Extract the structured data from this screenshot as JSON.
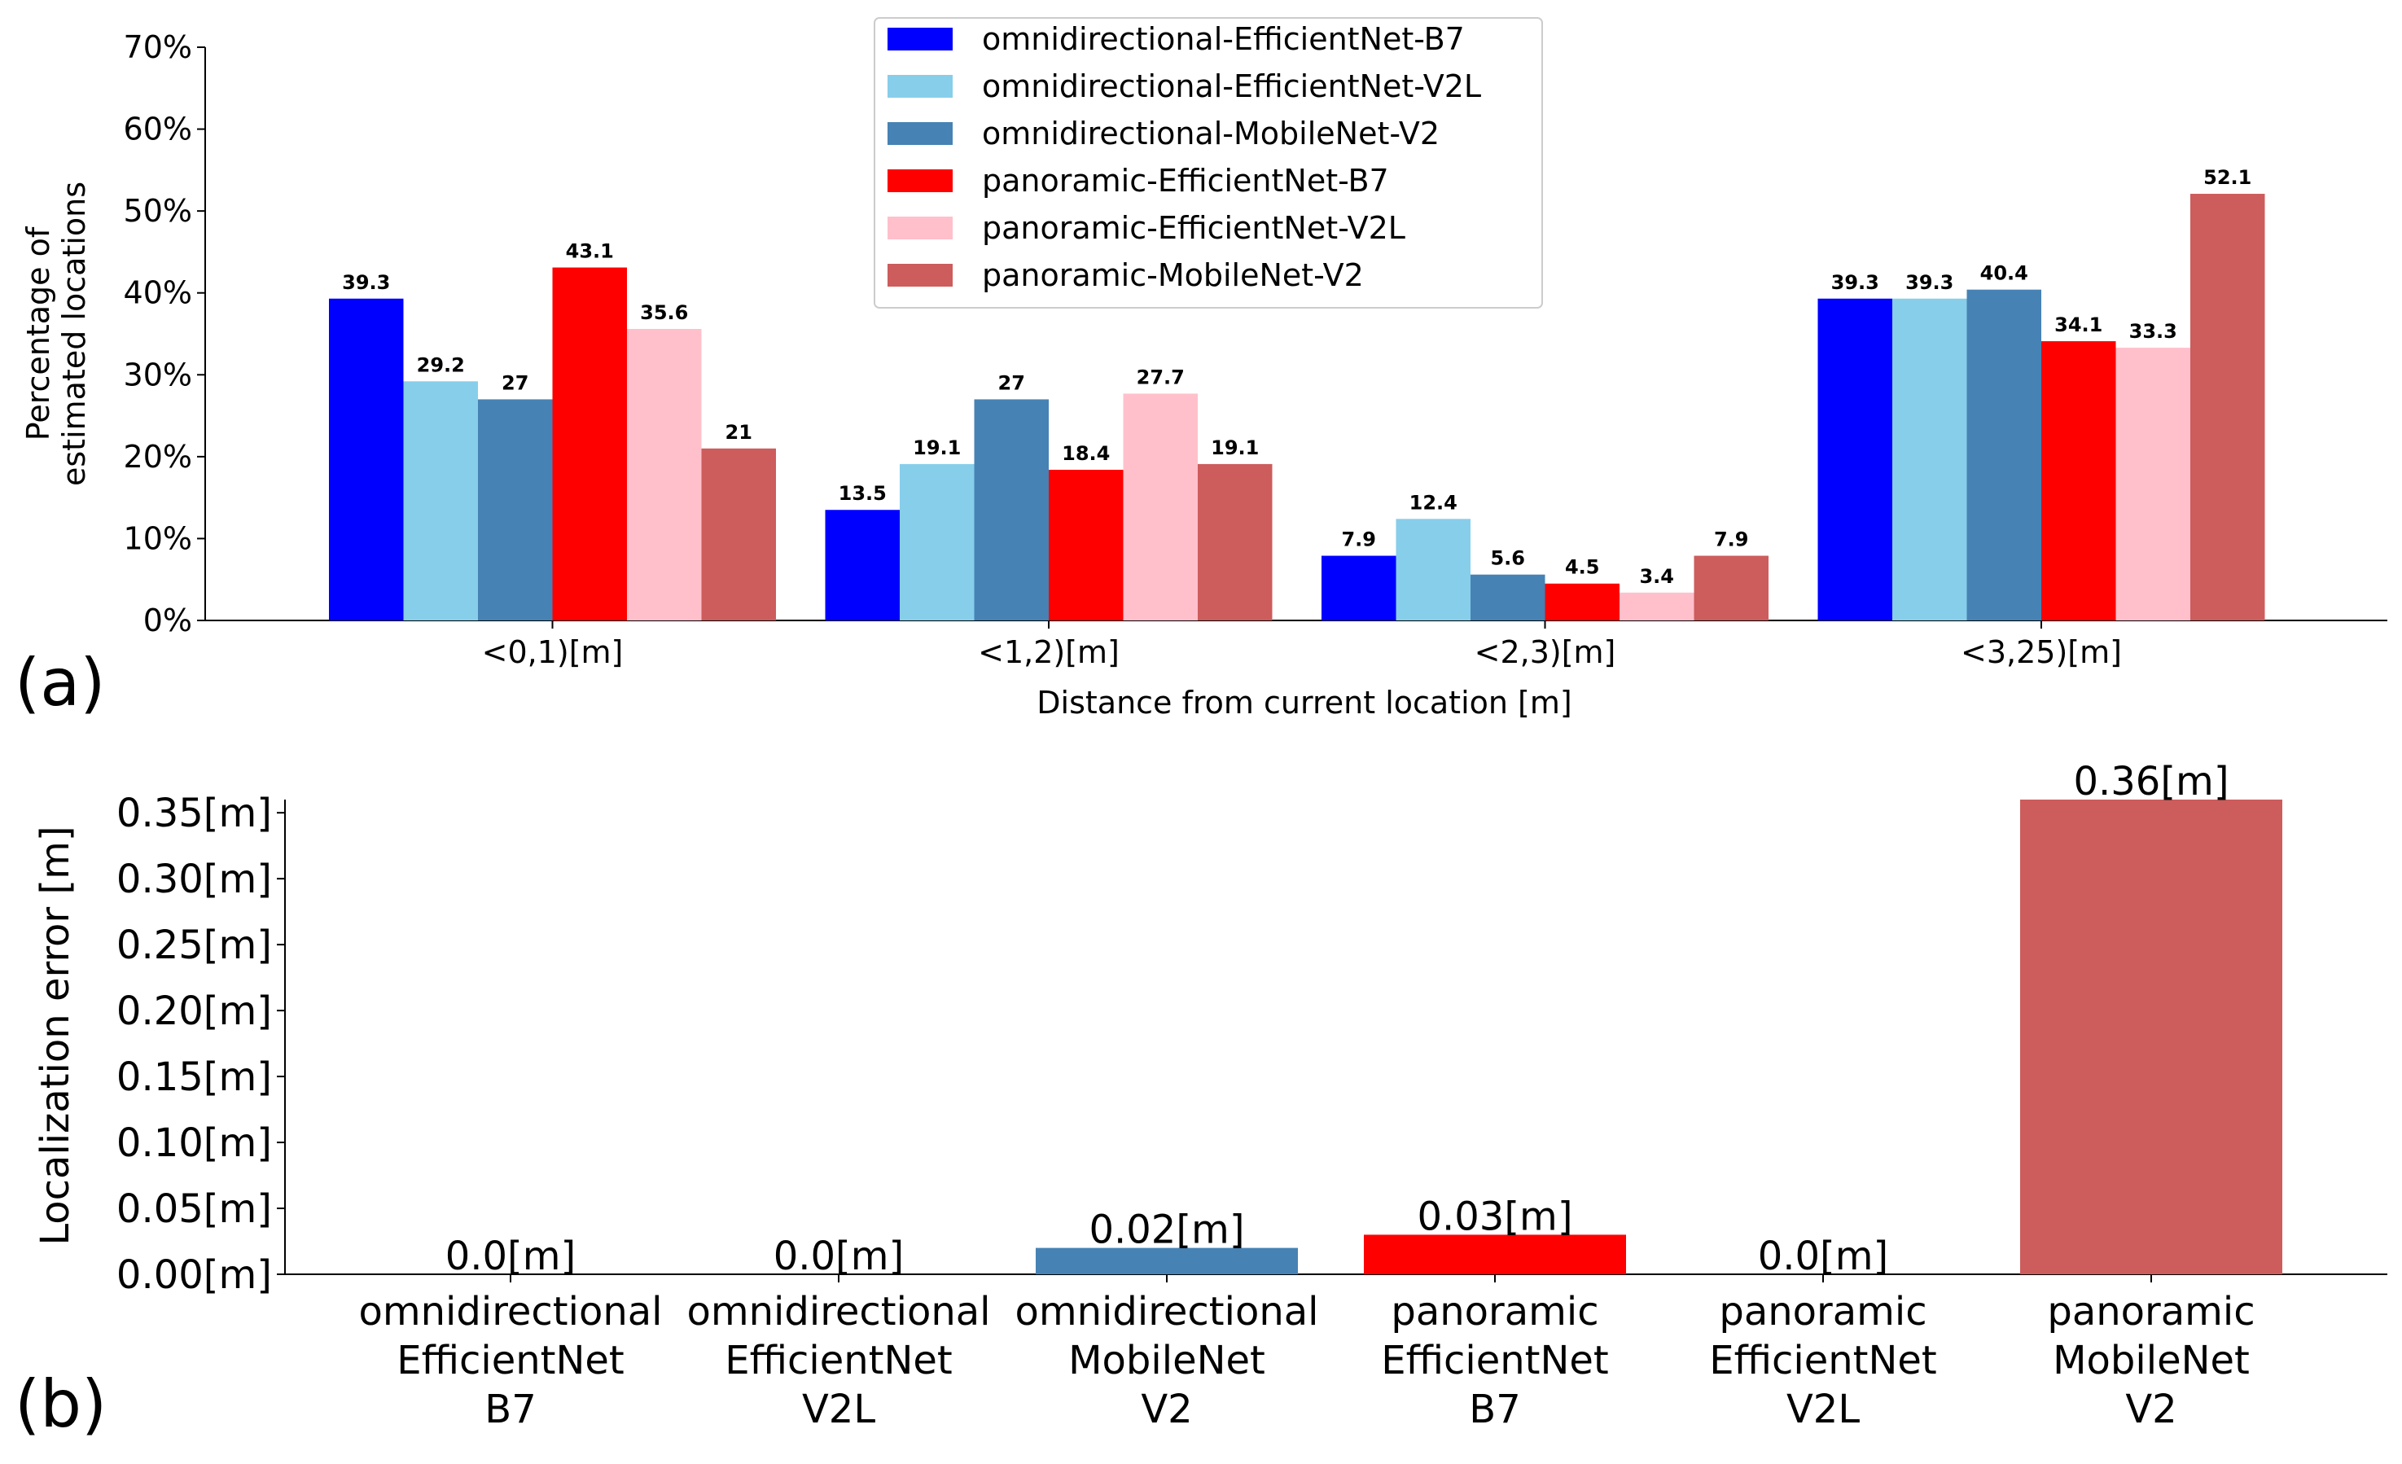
{
  "chart_data": [
    {
      "type": "bar",
      "panel_label": "(a)",
      "title": "",
      "xlabel": "Distance from current location [m]",
      "ylabel": [
        "Percentage of",
        "estimated locations"
      ],
      "ylim": [
        0,
        70
      ],
      "yticks": [
        "0%",
        "10%",
        "20%",
        "30%",
        "40%",
        "50%",
        "60%",
        "70%"
      ],
      "categories": [
        "<0,1)[m]",
        "<1,2)[m]",
        "<2,3)[m]",
        "<3,25)[m]"
      ],
      "series": [
        {
          "name": "omnidirectional-EfficientNet-B7",
          "color": "#0000ff",
          "values": [
            39.3,
            13.5,
            7.9,
            39.3
          ],
          "labels": [
            "39.3",
            "13.5",
            "7.9",
            "39.3"
          ]
        },
        {
          "name": "omnidirectional-EfficientNet-V2L",
          "color": "#87ceeb",
          "values": [
            29.2,
            19.1,
            12.4,
            39.3
          ],
          "labels": [
            "29.2",
            "19.1",
            "12.4",
            "39.3"
          ]
        },
        {
          "name": "omnidirectional-MobileNet-V2",
          "color": "#4682b4",
          "values": [
            27,
            27,
            5.6,
            40.4
          ],
          "labels": [
            "27",
            "27",
            "5.6",
            "40.4"
          ]
        },
        {
          "name": "panoramic-EfficientNet-B7",
          "color": "#ff0000",
          "values": [
            43.1,
            18.4,
            4.5,
            34.1
          ],
          "labels": [
            "43.1",
            "18.4",
            "4.5",
            "34.1"
          ]
        },
        {
          "name": "panoramic-EfficientNet-V2L",
          "color": "#ffc0cb",
          "values": [
            35.6,
            27.7,
            3.4,
            33.3
          ],
          "labels": [
            "35.6",
            "27.7",
            "3.4",
            "33.3"
          ]
        },
        {
          "name": "panoramic-MobileNet-V2",
          "color": "#cd5c5c",
          "values": [
            21,
            19.1,
            7.9,
            52.1
          ],
          "labels": [
            "21",
            "19.1",
            "7.9",
            "52.1"
          ]
        }
      ],
      "legend_position": "top-center"
    },
    {
      "type": "bar",
      "panel_label": "(b)",
      "title": "",
      "xlabel": "",
      "ylabel": "Localization error [m]",
      "ylim": [
        0,
        0.36
      ],
      "yticks": [
        {
          "value": 0.0,
          "label": "0.00[m]"
        },
        {
          "value": 0.05,
          "label": "0.05[m]"
        },
        {
          "value": 0.1,
          "label": "0.10[m]"
        },
        {
          "value": 0.15,
          "label": "0.15[m]"
        },
        {
          "value": 0.2,
          "label": "0.20[m]"
        },
        {
          "value": 0.25,
          "label": "0.25[m]"
        },
        {
          "value": 0.3,
          "label": "0.30[m]"
        },
        {
          "value": 0.35,
          "label": "0.35[m]"
        }
      ],
      "categories": [
        [
          "omnidirectional",
          "EfficientNet",
          "B7"
        ],
        [
          "omnidirectional",
          "EfficientNet",
          "V2L"
        ],
        [
          "omnidirectional",
          "MobileNet",
          "V2"
        ],
        [
          "panoramic",
          "EfficientNet",
          "B7"
        ],
        [
          "panoramic",
          "EfficientNet",
          "V2L"
        ],
        [
          "panoramic",
          "MobileNet",
          "V2"
        ]
      ],
      "values": [
        0.0,
        0.0,
        0.02,
        0.03,
        0.0,
        0.36
      ],
      "labels": [
        "0.0[m]",
        "0.0[m]",
        "0.02[m]",
        "0.03[m]",
        "0.0[m]",
        "0.36[m]"
      ],
      "colors": [
        "#0000ff",
        "#87ceeb",
        "#4682b4",
        "#ff0000",
        "#ffc0cb",
        "#cd5c5c"
      ]
    }
  ]
}
